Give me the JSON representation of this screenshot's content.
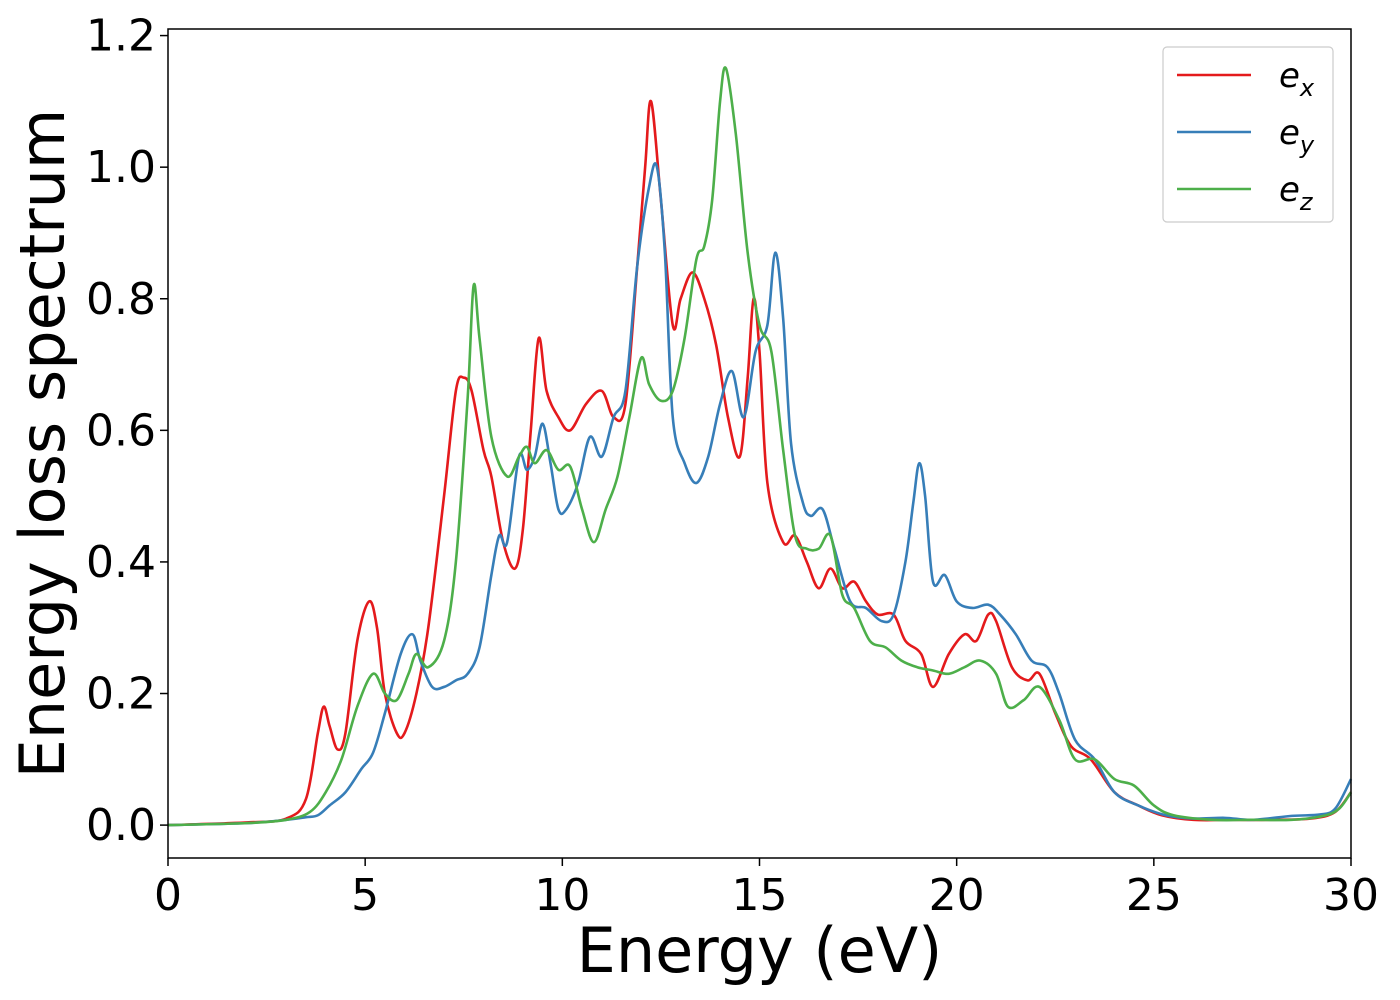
{
  "chart_data": {
    "type": "line",
    "title": "",
    "xlabel": "Energy (eV)",
    "ylabel": "Energy loss spectrum",
    "xlim": [
      0,
      30
    ],
    "ylim": [
      -0.05,
      1.21
    ],
    "xticks": [
      0,
      5,
      10,
      15,
      20,
      25,
      30
    ],
    "xtick_labels": [
      "0",
      "5",
      "10",
      "15",
      "20",
      "25",
      "30"
    ],
    "yticks": [
      0.0,
      0.2,
      0.4,
      0.6,
      0.8,
      1.0,
      1.2
    ],
    "ytick_labels": [
      "0.0",
      "0.2",
      "0.4",
      "0.6",
      "0.8",
      "1.0",
      "1.2"
    ],
    "grid": false,
    "legend_position": "top-right",
    "series": [
      {
        "name": "e",
        "subscript": "x",
        "color": "#e41a1c",
        "points": [
          [
            0,
            0
          ],
          [
            2,
            0.004
          ],
          [
            3,
            0.01
          ],
          [
            3.5,
            0.04
          ],
          [
            3.8,
            0.14
          ],
          [
            3.95,
            0.18
          ],
          [
            4.1,
            0.15
          ],
          [
            4.3,
            0.115
          ],
          [
            4.5,
            0.14
          ],
          [
            4.8,
            0.28
          ],
          [
            5.1,
            0.34
          ],
          [
            5.3,
            0.3
          ],
          [
            5.5,
            0.2
          ],
          [
            5.8,
            0.14
          ],
          [
            6.0,
            0.14
          ],
          [
            6.3,
            0.2
          ],
          [
            6.6,
            0.3
          ],
          [
            7.0,
            0.5
          ],
          [
            7.3,
            0.66
          ],
          [
            7.5,
            0.68
          ],
          [
            7.7,
            0.66
          ],
          [
            8.0,
            0.57
          ],
          [
            8.2,
            0.53
          ],
          [
            8.5,
            0.43
          ],
          [
            8.8,
            0.39
          ],
          [
            9.0,
            0.45
          ],
          [
            9.2,
            0.6
          ],
          [
            9.4,
            0.74
          ],
          [
            9.6,
            0.66
          ],
          [
            9.9,
            0.62
          ],
          [
            10.2,
            0.6
          ],
          [
            10.6,
            0.64
          ],
          [
            11.0,
            0.66
          ],
          [
            11.3,
            0.62
          ],
          [
            11.6,
            0.64
          ],
          [
            11.9,
            0.85
          ],
          [
            12.1,
            1.0
          ],
          [
            12.25,
            1.1
          ],
          [
            12.5,
            0.95
          ],
          [
            12.8,
            0.76
          ],
          [
            13.0,
            0.8
          ],
          [
            13.3,
            0.84
          ],
          [
            13.6,
            0.8
          ],
          [
            13.9,
            0.73
          ],
          [
            14.2,
            0.62
          ],
          [
            14.5,
            0.56
          ],
          [
            14.7,
            0.68
          ],
          [
            14.85,
            0.8
          ],
          [
            15.0,
            0.72
          ],
          [
            15.2,
            0.52
          ],
          [
            15.6,
            0.43
          ],
          [
            15.9,
            0.44
          ],
          [
            16.2,
            0.4
          ],
          [
            16.5,
            0.36
          ],
          [
            16.8,
            0.39
          ],
          [
            17.1,
            0.36
          ],
          [
            17.4,
            0.37
          ],
          [
            17.7,
            0.34
          ],
          [
            18.0,
            0.32
          ],
          [
            18.4,
            0.32
          ],
          [
            18.7,
            0.28
          ],
          [
            19.1,
            0.26
          ],
          [
            19.4,
            0.21
          ],
          [
            19.8,
            0.26
          ],
          [
            20.2,
            0.29
          ],
          [
            20.5,
            0.28
          ],
          [
            20.8,
            0.32
          ],
          [
            21.0,
            0.31
          ],
          [
            21.4,
            0.24
          ],
          [
            21.8,
            0.22
          ],
          [
            22.1,
            0.23
          ],
          [
            22.5,
            0.17
          ],
          [
            22.9,
            0.12
          ],
          [
            23.4,
            0.1
          ],
          [
            24.0,
            0.05
          ],
          [
            24.6,
            0.03
          ],
          [
            25.2,
            0.015
          ],
          [
            26,
            0.008
          ],
          [
            27,
            0.008
          ],
          [
            28,
            0.008
          ],
          [
            29,
            0.01
          ],
          [
            29.6,
            0.02
          ],
          [
            30,
            0.05
          ]
        ]
      },
      {
        "name": "e",
        "subscript": "y",
        "color": "#377eb8",
        "points": [
          [
            0,
            0
          ],
          [
            2,
            0.003
          ],
          [
            3,
            0.008
          ],
          [
            3.5,
            0.012
          ],
          [
            3.8,
            0.015
          ],
          [
            4.1,
            0.03
          ],
          [
            4.5,
            0.05
          ],
          [
            4.9,
            0.085
          ],
          [
            5.2,
            0.11
          ],
          [
            5.5,
            0.17
          ],
          [
            5.9,
            0.26
          ],
          [
            6.2,
            0.29
          ],
          [
            6.4,
            0.25
          ],
          [
            6.7,
            0.21
          ],
          [
            7.0,
            0.21
          ],
          [
            7.3,
            0.22
          ],
          [
            7.6,
            0.23
          ],
          [
            7.9,
            0.27
          ],
          [
            8.2,
            0.38
          ],
          [
            8.4,
            0.44
          ],
          [
            8.6,
            0.43
          ],
          [
            8.9,
            0.56
          ],
          [
            9.1,
            0.54
          ],
          [
            9.3,
            0.56
          ],
          [
            9.5,
            0.61
          ],
          [
            9.7,
            0.55
          ],
          [
            9.9,
            0.48
          ],
          [
            10.1,
            0.48
          ],
          [
            10.4,
            0.52
          ],
          [
            10.7,
            0.59
          ],
          [
            11.0,
            0.56
          ],
          [
            11.3,
            0.62
          ],
          [
            11.6,
            0.66
          ],
          [
            11.9,
            0.85
          ],
          [
            12.2,
            0.97
          ],
          [
            12.4,
            1.0
          ],
          [
            12.6,
            0.87
          ],
          [
            12.8,
            0.62
          ],
          [
            13.1,
            0.55
          ],
          [
            13.4,
            0.52
          ],
          [
            13.7,
            0.56
          ],
          [
            14.0,
            0.64
          ],
          [
            14.3,
            0.69
          ],
          [
            14.6,
            0.62
          ],
          [
            14.9,
            0.72
          ],
          [
            15.2,
            0.76
          ],
          [
            15.4,
            0.87
          ],
          [
            15.6,
            0.77
          ],
          [
            15.8,
            0.58
          ],
          [
            16.1,
            0.49
          ],
          [
            16.3,
            0.47
          ],
          [
            16.6,
            0.48
          ],
          [
            16.9,
            0.42
          ],
          [
            17.3,
            0.34
          ],
          [
            17.7,
            0.33
          ],
          [
            18.1,
            0.31
          ],
          [
            18.4,
            0.32
          ],
          [
            18.7,
            0.4
          ],
          [
            18.9,
            0.49
          ],
          [
            19.05,
            0.55
          ],
          [
            19.2,
            0.5
          ],
          [
            19.4,
            0.37
          ],
          [
            19.7,
            0.38
          ],
          [
            20.0,
            0.34
          ],
          [
            20.4,
            0.33
          ],
          [
            20.8,
            0.335
          ],
          [
            21.1,
            0.32
          ],
          [
            21.5,
            0.29
          ],
          [
            21.9,
            0.25
          ],
          [
            22.3,
            0.24
          ],
          [
            22.6,
            0.2
          ],
          [
            23.0,
            0.13
          ],
          [
            23.5,
            0.1
          ],
          [
            24.0,
            0.05
          ],
          [
            24.6,
            0.03
          ],
          [
            25.3,
            0.015
          ],
          [
            26,
            0.01
          ],
          [
            26.8,
            0.011
          ],
          [
            27.5,
            0.008
          ],
          [
            28.5,
            0.014
          ],
          [
            29.2,
            0.016
          ],
          [
            29.6,
            0.025
          ],
          [
            30,
            0.07
          ]
        ]
      },
      {
        "name": "e",
        "subscript": "z",
        "color": "#4daf4a",
        "points": [
          [
            0,
            0
          ],
          [
            2,
            0.003
          ],
          [
            3,
            0.008
          ],
          [
            3.6,
            0.02
          ],
          [
            4.0,
            0.05
          ],
          [
            4.4,
            0.1
          ],
          [
            4.8,
            0.18
          ],
          [
            5.2,
            0.23
          ],
          [
            5.5,
            0.2
          ],
          [
            5.8,
            0.19
          ],
          [
            6.1,
            0.23
          ],
          [
            6.3,
            0.26
          ],
          [
            6.6,
            0.24
          ],
          [
            7.0,
            0.28
          ],
          [
            7.3,
            0.4
          ],
          [
            7.6,
            0.65
          ],
          [
            7.75,
            0.82
          ],
          [
            7.9,
            0.74
          ],
          [
            8.2,
            0.59
          ],
          [
            8.6,
            0.53
          ],
          [
            8.9,
            0.56
          ],
          [
            9.1,
            0.575
          ],
          [
            9.3,
            0.55
          ],
          [
            9.6,
            0.57
          ],
          [
            9.9,
            0.54
          ],
          [
            10.2,
            0.545
          ],
          [
            10.5,
            0.48
          ],
          [
            10.8,
            0.43
          ],
          [
            11.1,
            0.48
          ],
          [
            11.4,
            0.53
          ],
          [
            11.7,
            0.62
          ],
          [
            12.0,
            0.71
          ],
          [
            12.2,
            0.67
          ],
          [
            12.5,
            0.645
          ],
          [
            12.8,
            0.66
          ],
          [
            13.1,
            0.74
          ],
          [
            13.4,
            0.86
          ],
          [
            13.6,
            0.88
          ],
          [
            13.8,
            0.95
          ],
          [
            14.0,
            1.1
          ],
          [
            14.15,
            1.15
          ],
          [
            14.4,
            1.05
          ],
          [
            14.7,
            0.87
          ],
          [
            15.0,
            0.76
          ],
          [
            15.3,
            0.72
          ],
          [
            15.6,
            0.57
          ],
          [
            15.9,
            0.44
          ],
          [
            16.2,
            0.42
          ],
          [
            16.5,
            0.42
          ],
          [
            16.8,
            0.44
          ],
          [
            17.1,
            0.35
          ],
          [
            17.4,
            0.33
          ],
          [
            17.8,
            0.28
          ],
          [
            18.2,
            0.27
          ],
          [
            18.6,
            0.25
          ],
          [
            19.0,
            0.24
          ],
          [
            19.4,
            0.235
          ],
          [
            19.8,
            0.23
          ],
          [
            20.2,
            0.24
          ],
          [
            20.6,
            0.25
          ],
          [
            21.0,
            0.23
          ],
          [
            21.3,
            0.18
          ],
          [
            21.7,
            0.19
          ],
          [
            22.1,
            0.21
          ],
          [
            22.6,
            0.16
          ],
          [
            23.0,
            0.1
          ],
          [
            23.5,
            0.1
          ],
          [
            24.0,
            0.07
          ],
          [
            24.5,
            0.06
          ],
          [
            25.0,
            0.03
          ],
          [
            25.5,
            0.015
          ],
          [
            26.5,
            0.008
          ],
          [
            27.5,
            0.008
          ],
          [
            28.5,
            0.008
          ],
          [
            29.3,
            0.014
          ],
          [
            29.7,
            0.025
          ],
          [
            30,
            0.05
          ]
        ]
      }
    ]
  }
}
